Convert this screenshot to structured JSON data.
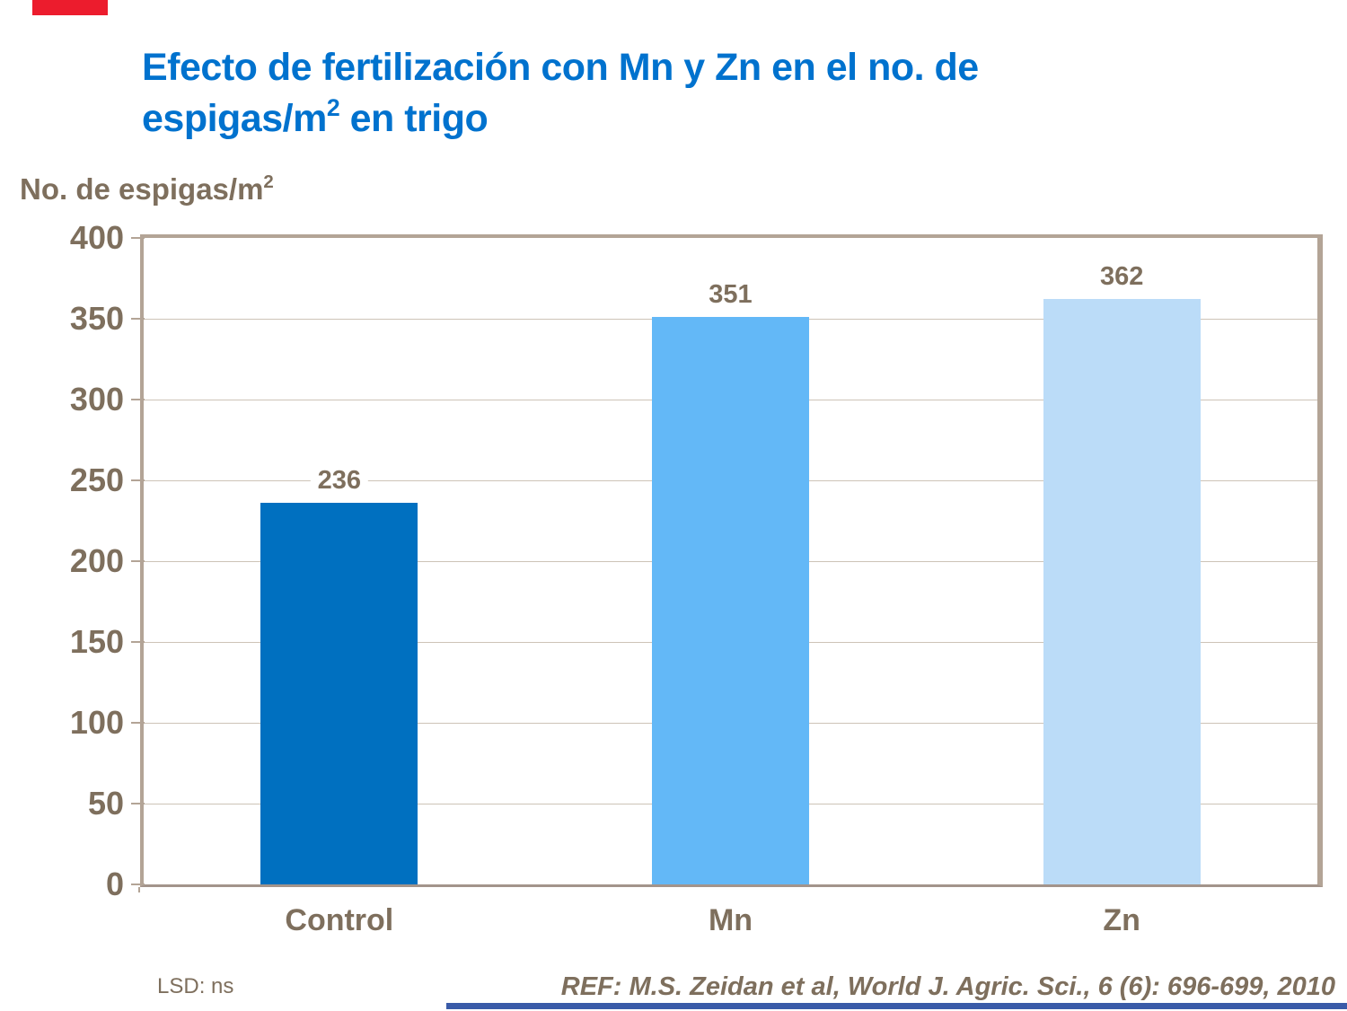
{
  "decor": {
    "red_strip_color": "#EC1C2D",
    "footer_bar_color": "#3A5BA8"
  },
  "title": {
    "line1": "Efecto de fertilización con Mn y Zn en el no. de",
    "line2_pre": "espigas/m",
    "line2_sup": "2",
    "line2_post": " en trigo",
    "color": "#0072CE"
  },
  "y_axis_title": {
    "pre": "No. de espigas/m",
    "sup": "2"
  },
  "footnotes": {
    "lsd": "LSD: ns",
    "ref": "REF: M.S. Zeidan et al, World J. Agric. Sci., 6 (6): 696-699, 2010"
  },
  "chart_data": {
    "type": "bar",
    "title": "Efecto de fertilización con Mn y Zn en el no. de espigas/m2 en trigo",
    "categories": [
      "Control",
      "Mn",
      "Zn"
    ],
    "values": [
      236,
      351,
      362
    ],
    "bar_colors": [
      "#0070C0",
      "#63B8F7",
      "#BBDCF8"
    ],
    "xlabel": "",
    "ylabel": "No. de espigas/m2",
    "ylim": [
      0,
      400
    ],
    "yticks": [
      0,
      50,
      100,
      150,
      200,
      250,
      300,
      350,
      400
    ],
    "grid": true,
    "legend": false,
    "data_labels": true,
    "text_color": "#7E6F5D",
    "frame_color": "#B3A496",
    "gridline_color": "#CDC3B7"
  }
}
